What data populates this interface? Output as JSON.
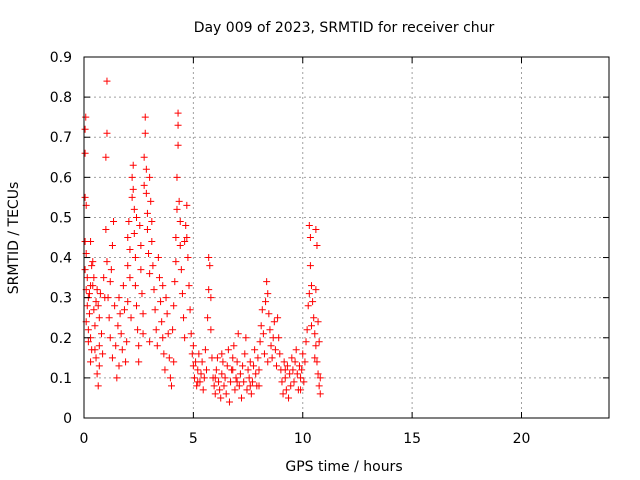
{
  "chart_data": {
    "type": "scatter",
    "title": "Day 009 of 2023, SRMTID for receiver chur",
    "xlabel": "GPS time / hours",
    "ylabel": "SRMTID / TECUs",
    "xlim": [
      0,
      24
    ],
    "ylim": [
      0,
      0.9
    ],
    "x_ticks": [
      0,
      5,
      10,
      15,
      20
    ],
    "y_ticks": [
      0,
      0.1,
      0.2,
      0.3,
      0.4,
      0.5,
      0.6,
      0.7,
      0.8,
      0.9
    ],
    "x_tick_labels": [
      "0",
      "5",
      "10",
      "15",
      "20"
    ],
    "y_tick_labels": [
      "0",
      "0.1",
      "0.2",
      "0.3",
      "0.4",
      "0.5",
      "0.6",
      "0.7",
      "0.8",
      "0.9"
    ],
    "grid": true,
    "marker": "+",
    "marker_color": "#ff0000",
    "series": [
      {
        "name": "SRMTID",
        "points": [
          [
            0.05,
            0.72
          ],
          [
            0.05,
            0.66
          ],
          [
            0.08,
            0.75
          ],
          [
            0.05,
            0.55
          ],
          [
            0.1,
            0.53
          ],
          [
            0.05,
            0.44
          ],
          [
            0.1,
            0.41
          ],
          [
            0.05,
            0.37
          ],
          [
            0.1,
            0.32
          ],
          [
            0.15,
            0.28
          ],
          [
            0.1,
            0.24
          ],
          [
            0.2,
            0.22
          ],
          [
            0.15,
            0.35
          ],
          [
            0.2,
            0.3
          ],
          [
            0.25,
            0.26
          ],
          [
            0.3,
            0.2
          ],
          [
            0.35,
            0.38
          ],
          [
            0.3,
            0.44
          ],
          [
            0.4,
            0.33
          ],
          [
            0.45,
            0.27
          ],
          [
            0.5,
            0.23
          ],
          [
            0.5,
            0.17
          ],
          [
            0.55,
            0.15
          ],
          [
            0.6,
            0.11
          ],
          [
            0.6,
            0.32
          ],
          [
            0.65,
            0.28
          ],
          [
            0.7,
            0.25
          ],
          [
            0.75,
            0.31
          ],
          [
            0.8,
            0.21
          ],
          [
            0.85,
            0.16
          ],
          [
            0.9,
            0.35
          ],
          [
            0.95,
            0.3
          ],
          [
            0.3,
            0.14
          ],
          [
            0.35,
            0.17
          ],
          [
            0.65,
            0.08
          ],
          [
            0.7,
            0.13
          ],
          [
            0.25,
            0.31
          ],
          [
            0.4,
            0.39
          ],
          [
            0.45,
            0.35
          ],
          [
            0.55,
            0.29
          ],
          [
            1.0,
            0.47
          ],
          [
            1.05,
            0.39
          ],
          [
            1.05,
            0.71
          ],
          [
            1.0,
            0.65
          ],
          [
            1.05,
            0.84
          ],
          [
            1.1,
            0.3
          ],
          [
            1.15,
            0.25
          ],
          [
            1.2,
            0.2
          ],
          [
            1.25,
            0.37
          ],
          [
            1.3,
            0.43
          ],
          [
            1.35,
            0.49
          ],
          [
            1.3,
            0.15
          ],
          [
            1.4,
            0.28
          ],
          [
            1.45,
            0.18
          ],
          [
            1.5,
            0.1
          ],
          [
            1.55,
            0.23
          ],
          [
            1.6,
            0.3
          ],
          [
            1.65,
            0.26
          ],
          [
            1.7,
            0.21
          ],
          [
            1.75,
            0.17
          ],
          [
            1.8,
            0.33
          ],
          [
            1.85,
            0.27
          ],
          [
            1.9,
            0.14
          ],
          [
            1.95,
            0.19
          ],
          [
            2.0,
            0.38
          ],
          [
            2.0,
            0.45
          ],
          [
            2.05,
            0.49
          ],
          [
            2.1,
            0.42
          ],
          [
            2.1,
            0.35
          ],
          [
            2.15,
            0.25
          ],
          [
            2.2,
            0.55
          ],
          [
            2.2,
            0.6
          ],
          [
            2.25,
            0.63
          ],
          [
            2.25,
            0.57
          ],
          [
            2.3,
            0.52
          ],
          [
            2.3,
            0.46
          ],
          [
            2.35,
            0.4
          ],
          [
            2.35,
            0.33
          ],
          [
            2.4,
            0.28
          ],
          [
            2.45,
            0.22
          ],
          [
            2.5,
            0.18
          ],
          [
            2.5,
            0.14
          ],
          [
            2.55,
            0.48
          ],
          [
            2.6,
            0.43
          ],
          [
            2.6,
            0.37
          ],
          [
            2.65,
            0.31
          ],
          [
            2.7,
            0.26
          ],
          [
            2.7,
            0.21
          ],
          [
            2.75,
            0.58
          ],
          [
            2.75,
            0.65
          ],
          [
            2.8,
            0.71
          ],
          [
            2.8,
            0.75
          ],
          [
            2.85,
            0.62
          ],
          [
            2.85,
            0.56
          ],
          [
            2.9,
            0.51
          ],
          [
            2.9,
            0.47
          ],
          [
            2.95,
            0.41
          ],
          [
            3.0,
            0.36
          ],
          [
            3.0,
            0.6
          ],
          [
            3.05,
            0.54
          ],
          [
            3.1,
            0.49
          ],
          [
            3.1,
            0.44
          ],
          [
            3.15,
            0.38
          ],
          [
            3.2,
            0.32
          ],
          [
            3.25,
            0.27
          ],
          [
            3.3,
            0.22
          ],
          [
            3.35,
            0.18
          ],
          [
            3.4,
            0.4
          ],
          [
            3.45,
            0.35
          ],
          [
            3.5,
            0.29
          ],
          [
            3.55,
            0.24
          ],
          [
            3.6,
            0.2
          ],
          [
            3.65,
            0.16
          ],
          [
            3.7,
            0.12
          ],
          [
            3.75,
            0.3
          ],
          [
            3.8,
            0.26
          ],
          [
            3.85,
            0.21
          ],
          [
            3.9,
            0.15
          ],
          [
            3.95,
            0.1
          ],
          [
            4.0,
            0.08
          ],
          [
            4.05,
            0.22
          ],
          [
            4.1,
            0.28
          ],
          [
            4.15,
            0.34
          ],
          [
            4.2,
            0.39
          ],
          [
            4.2,
            0.45
          ],
          [
            4.25,
            0.52
          ],
          [
            4.25,
            0.6
          ],
          [
            4.3,
            0.68
          ],
          [
            4.3,
            0.73
          ],
          [
            4.3,
            0.76
          ],
          [
            4.35,
            0.54
          ],
          [
            4.4,
            0.49
          ],
          [
            4.4,
            0.43
          ],
          [
            4.45,
            0.37
          ],
          [
            4.5,
            0.31
          ],
          [
            4.55,
            0.25
          ],
          [
            4.6,
            0.44
          ],
          [
            4.65,
            0.48
          ],
          [
            4.7,
            0.53
          ],
          [
            4.7,
            0.45
          ],
          [
            4.75,
            0.4
          ],
          [
            4.8,
            0.33
          ],
          [
            4.85,
            0.27
          ],
          [
            4.9,
            0.21
          ],
          [
            4.95,
            0.16
          ],
          [
            5.0,
            0.13
          ],
          [
            5.05,
            0.1
          ],
          [
            5.1,
            0.14
          ],
          [
            5.15,
            0.08
          ],
          [
            5.2,
            0.12
          ],
          [
            5.25,
            0.16
          ],
          [
            5.3,
            0.09
          ],
          [
            5.35,
            0.11
          ],
          [
            5.4,
            0.14
          ],
          [
            5.45,
            0.07
          ],
          [
            5.5,
            0.1
          ],
          [
            5.55,
            0.17
          ],
          [
            5.6,
            0.12
          ],
          [
            5.65,
            0.25
          ],
          [
            5.7,
            0.32
          ],
          [
            5.7,
            0.4
          ],
          [
            5.75,
            0.38
          ],
          [
            5.8,
            0.3
          ],
          [
            5.8,
            0.22
          ],
          [
            5.85,
            0.15
          ],
          [
            5.9,
            0.1
          ],
          [
            5.95,
            0.08
          ],
          [
            6.0,
            0.06
          ],
          [
            6.05,
            0.12
          ],
          [
            6.1,
            0.15
          ],
          [
            6.15,
            0.09
          ],
          [
            6.2,
            0.07
          ],
          [
            6.25,
            0.05
          ],
          [
            6.3,
            0.11
          ],
          [
            6.35,
            0.14
          ],
          [
            6.4,
            0.08
          ],
          [
            6.45,
            0.1
          ],
          [
            6.5,
            0.06
          ],
          [
            6.55,
            0.13
          ],
          [
            6.6,
            0.17
          ],
          [
            6.65,
            0.04
          ],
          [
            6.7,
            0.09
          ],
          [
            6.75,
            0.12
          ],
          [
            6.8,
            0.15
          ],
          [
            6.85,
            0.18
          ],
          [
            6.9,
            0.07
          ],
          [
            6.95,
            0.1
          ],
          [
            7.0,
            0.14
          ],
          [
            7.05,
            0.21
          ],
          [
            7.1,
            0.08
          ],
          [
            7.15,
            0.11
          ],
          [
            7.2,
            0.05
          ],
          [
            7.25,
            0.13
          ],
          [
            7.3,
            0.09
          ],
          [
            7.35,
            0.16
          ],
          [
            7.4,
            0.2
          ],
          [
            7.45,
            0.07
          ],
          [
            7.5,
            0.12
          ],
          [
            7.55,
            0.1
          ],
          [
            7.6,
            0.14
          ],
          [
            7.65,
            0.06
          ],
          [
            7.7,
            0.09
          ],
          [
            7.75,
            0.13
          ],
          [
            7.8,
            0.17
          ],
          [
            7.85,
            0.11
          ],
          [
            7.9,
            0.08
          ],
          [
            7.95,
            0.15
          ],
          [
            8.0,
            0.12
          ],
          [
            8.05,
            0.19
          ],
          [
            8.1,
            0.23
          ],
          [
            8.15,
            0.27
          ],
          [
            8.2,
            0.21
          ],
          [
            8.25,
            0.16
          ],
          [
            8.3,
            0.29
          ],
          [
            8.35,
            0.34
          ],
          [
            8.4,
            0.31
          ],
          [
            8.45,
            0.26
          ],
          [
            8.5,
            0.22
          ],
          [
            8.55,
            0.18
          ],
          [
            8.6,
            0.15
          ],
          [
            8.65,
            0.2
          ],
          [
            8.7,
            0.24
          ],
          [
            8.75,
            0.17
          ],
          [
            8.8,
            0.13
          ],
          [
            8.85,
            0.25
          ],
          [
            8.9,
            0.2
          ],
          [
            8.95,
            0.16
          ],
          [
            9.0,
            0.12
          ],
          [
            9.05,
            0.09
          ],
          [
            9.1,
            0.06
          ],
          [
            9.15,
            0.14
          ],
          [
            9.2,
            0.1
          ],
          [
            9.25,
            0.07
          ],
          [
            9.3,
            0.13
          ],
          [
            9.35,
            0.05
          ],
          [
            9.4,
            0.11
          ],
          [
            9.45,
            0.08
          ],
          [
            9.5,
            0.15
          ],
          [
            9.55,
            0.12
          ],
          [
            9.6,
            0.09
          ],
          [
            9.65,
            0.14
          ],
          [
            9.7,
            0.17
          ],
          [
            9.75,
            0.11
          ],
          [
            9.8,
            0.07
          ],
          [
            9.85,
            0.13
          ],
          [
            9.9,
            0.1
          ],
          [
            9.95,
            0.12
          ],
          [
            10.0,
            0.16
          ],
          [
            10.05,
            0.09
          ],
          [
            10.1,
            0.14
          ],
          [
            10.15,
            0.19
          ],
          [
            10.2,
            0.22
          ],
          [
            10.25,
            0.28
          ],
          [
            10.3,
            0.31
          ],
          [
            10.3,
            0.48
          ],
          [
            10.35,
            0.45
          ],
          [
            10.35,
            0.38
          ],
          [
            10.4,
            0.33
          ],
          [
            10.45,
            0.29
          ],
          [
            10.5,
            0.25
          ],
          [
            10.55,
            0.21
          ],
          [
            10.6,
            0.18
          ],
          [
            10.6,
            0.47
          ],
          [
            10.65,
            0.43
          ],
          [
            10.65,
            0.14
          ],
          [
            10.7,
            0.11
          ],
          [
            10.75,
            0.08
          ],
          [
            10.8,
            0.06
          ],
          [
            10.7,
            0.24
          ],
          [
            10.75,
            0.19
          ],
          [
            10.8,
            0.1
          ],
          [
            10.55,
            0.15
          ],
          [
            0.2,
            0.19
          ],
          [
            0.3,
            0.33
          ],
          [
            0.7,
            0.18
          ],
          [
            1.2,
            0.34
          ],
          [
            1.6,
            0.13
          ],
          [
            2.0,
            0.29
          ],
          [
            2.4,
            0.5
          ],
          [
            3.0,
            0.19
          ],
          [
            3.6,
            0.33
          ],
          [
            4.1,
            0.14
          ],
          [
            4.6,
            0.2
          ],
          [
            5.2,
            0.09
          ],
          [
            6.0,
            0.1
          ],
          [
            6.8,
            0.12
          ],
          [
            7.6,
            0.08
          ],
          [
            8.4,
            0.14
          ],
          [
            9.2,
            0.12
          ],
          [
            9.9,
            0.07
          ],
          [
            10.4,
            0.23
          ],
          [
            10.6,
            0.32
          ],
          [
            7.0,
            0.09
          ],
          [
            8.0,
            0.08
          ],
          [
            6.3,
            0.16
          ],
          [
            5.0,
            0.18
          ]
        ]
      }
    ]
  }
}
